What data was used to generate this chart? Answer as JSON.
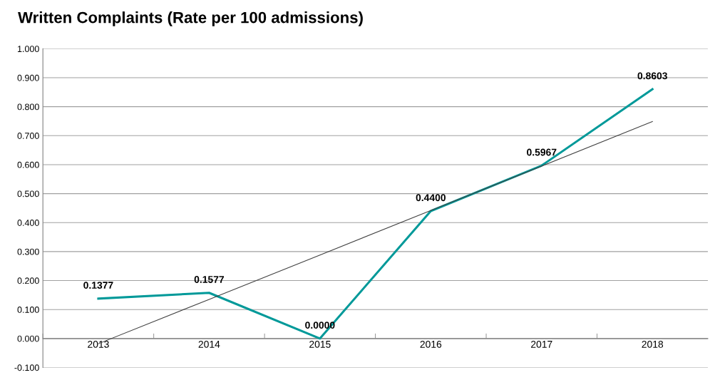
{
  "chart_data": {
    "type": "line",
    "title": "Written Complaints (Rate per 100 admissions)",
    "categories": [
      "2013",
      "2014",
      "2015",
      "2016",
      "2017",
      "2018"
    ],
    "series": [
      {
        "color": "#009999",
        "values": [
          0.1377,
          0.1577,
          0.0,
          0.44,
          0.5967,
          0.8603
        ],
        "data_labels": true,
        "value_labels": [
          "0.1377",
          "0.1577",
          "0.0000",
          "0.4400",
          "0.5967",
          "0.8603"
        ]
      },
      {
        "type": "line",
        "color": "#404040",
        "values": [
          -0.018,
          0.135,
          0.288,
          0.442,
          0.595,
          0.749
        ]
      }
    ],
    "ylim": [
      -0.1,
      1.0
    ],
    "yticks": [
      {
        "value": -0.1,
        "label": "-0.100"
      },
      {
        "value": 0,
        "label": "0.000"
      },
      {
        "value": 0.1,
        "label": "0.100"
      },
      {
        "value": 0.2,
        "label": "0.200"
      },
      {
        "value": 0.3,
        "label": "0.300"
      },
      {
        "value": 0.4,
        "label": "0.400"
      },
      {
        "value": 0.5,
        "label": "0.500"
      },
      {
        "value": 0.6,
        "label": "0.600"
      },
      {
        "value": 0.7,
        "label": "0.700"
      },
      {
        "value": 0.8,
        "label": "0.800"
      },
      {
        "value": 0.9,
        "label": "0.900"
      },
      {
        "value": 1.0,
        "label": "1.000"
      }
    ],
    "grid": "y",
    "marker": "none",
    "line_style": "solid"
  }
}
